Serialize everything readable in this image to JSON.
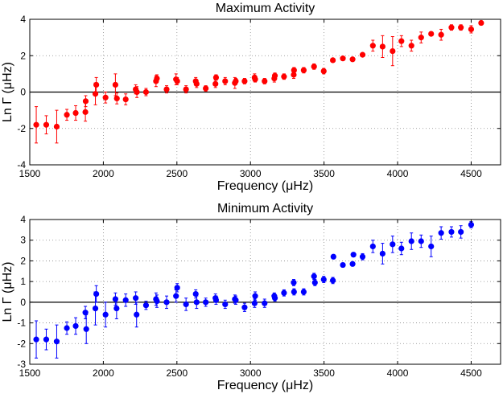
{
  "chart_data": [
    {
      "type": "scatter",
      "title": "Maximum Activity",
      "xlabel": "Frequency (μHz)",
      "ylabel": "Ln Γ (μHz)",
      "xlim": [
        1500,
        4700
      ],
      "ylim": [
        -4,
        4
      ],
      "xticks": [
        1500,
        2000,
        2500,
        3000,
        3500,
        4000,
        4500
      ],
      "yticks": [
        -4,
        -2,
        0,
        2,
        4
      ],
      "grid": true,
      "reference_line_y": 0,
      "color": "#ff0000",
      "points": [
        [
          1544,
          -1.8,
          1.0
        ],
        [
          1612,
          -1.8,
          0.5
        ],
        [
          1683,
          -1.9,
          0.9
        ],
        [
          1752,
          -1.25,
          0.3
        ],
        [
          1812,
          -1.15,
          0.4
        ],
        [
          1878,
          -1.1,
          0.5
        ],
        [
          1880,
          -0.5,
          0.3
        ],
        [
          1946,
          -0.1,
          0.6
        ],
        [
          1952,
          0.4,
          0.4
        ],
        [
          2015,
          -0.3,
          0.3
        ],
        [
          2082,
          0.4,
          0.6
        ],
        [
          2092,
          -0.35,
          0.3
        ],
        [
          2152,
          -0.4,
          0.3
        ],
        [
          2220,
          0.15,
          0.25
        ],
        [
          2228,
          0.0,
          0.3
        ],
        [
          2290,
          0.0,
          0.2
        ],
        [
          2358,
          0.6,
          0.3
        ],
        [
          2364,
          0.75,
          0.2
        ],
        [
          2430,
          0.15,
          0.2
        ],
        [
          2494,
          0.7,
          0.3
        ],
        [
          2502,
          0.6,
          0.2
        ],
        [
          2562,
          0.15,
          0.2
        ],
        [
          2628,
          0.6,
          0.2
        ],
        [
          2634,
          0.45,
          0.2
        ],
        [
          2696,
          0.2,
          0.15
        ],
        [
          2762,
          0.45,
          0.2
        ],
        [
          2766,
          0.8,
          0.15
        ],
        [
          2828,
          0.6,
          0.2
        ],
        [
          2894,
          0.5,
          0.3
        ],
        [
          2900,
          0.6,
          0.15
        ],
        [
          2960,
          0.6,
          0.15
        ],
        [
          3028,
          0.8,
          0.2
        ],
        [
          3032,
          0.7,
          0.15
        ],
        [
          3096,
          0.6,
          0.15
        ],
        [
          3162,
          0.75,
          0.2
        ],
        [
          3166,
          0.9,
          0.15
        ],
        [
          3228,
          0.85,
          0.15
        ],
        [
          3294,
          0.95,
          0.2
        ],
        [
          3296,
          1.2,
          0.15
        ],
        [
          3362,
          1.2,
          0.15
        ],
        [
          3432,
          1.4,
          0.15
        ],
        [
          3498,
          1.15,
          0.15
        ],
        [
          3560,
          1.75,
          0.1
        ],
        [
          3628,
          1.85,
          0.1
        ],
        [
          3694,
          1.8,
          0.1
        ],
        [
          3762,
          2.05,
          0.1
        ],
        [
          3832,
          2.55,
          0.3
        ],
        [
          3898,
          2.5,
          0.6
        ],
        [
          3966,
          2.25,
          0.8
        ],
        [
          4026,
          2.8,
          0.3
        ],
        [
          4094,
          2.55,
          0.3
        ],
        [
          4160,
          3.0,
          0.3
        ],
        [
          4228,
          3.2,
          0.1
        ],
        [
          4296,
          3.15,
          0.3
        ],
        [
          4366,
          3.55,
          0.15
        ],
        [
          4430,
          3.55,
          0.15
        ],
        [
          4500,
          3.45,
          0.2
        ],
        [
          4568,
          3.8,
          0.1
        ]
      ]
    },
    {
      "type": "scatter",
      "title": "Minimum Activity",
      "xlabel": "Frequency (μHz)",
      "ylabel": "Ln Γ (μHz)",
      "xlim": [
        1500,
        4700
      ],
      "ylim": [
        -3,
        4
      ],
      "xticks": [
        1500,
        2000,
        2500,
        3000,
        3500,
        4000,
        4500
      ],
      "yticks": [
        -3,
        -2,
        -1,
        0,
        1,
        2,
        3,
        4
      ],
      "grid": true,
      "reference_line_y": 0,
      "color": "#0000ff",
      "points": [
        [
          1544,
          -1.8,
          0.9
        ],
        [
          1612,
          -1.8,
          0.5
        ],
        [
          1683,
          -1.9,
          0.8
        ],
        [
          1752,
          -1.25,
          0.3
        ],
        [
          1812,
          -1.15,
          0.4
        ],
        [
          1878,
          -0.5,
          0.3
        ],
        [
          1884,
          -1.3,
          0.7
        ],
        [
          1946,
          -0.3,
          0.8
        ],
        [
          1952,
          0.4,
          0.4
        ],
        [
          2015,
          -0.6,
          0.6
        ],
        [
          2082,
          0.15,
          0.3
        ],
        [
          2090,
          -0.3,
          0.5
        ],
        [
          2152,
          0.1,
          0.3
        ],
        [
          2220,
          0.2,
          0.3
        ],
        [
          2226,
          -0.6,
          0.6
        ],
        [
          2290,
          -0.15,
          0.2
        ],
        [
          2358,
          0.15,
          0.3
        ],
        [
          2364,
          0.05,
          0.3
        ],
        [
          2430,
          0.0,
          0.3
        ],
        [
          2494,
          0.3,
          0.3
        ],
        [
          2502,
          0.7,
          0.2
        ],
        [
          2562,
          -0.1,
          0.3
        ],
        [
          2628,
          0.4,
          0.2
        ],
        [
          2634,
          0.0,
          0.3
        ],
        [
          2696,
          0.0,
          0.2
        ],
        [
          2762,
          0.2,
          0.2
        ],
        [
          2766,
          0.1,
          0.2
        ],
        [
          2828,
          -0.1,
          0.2
        ],
        [
          2894,
          0.15,
          0.2
        ],
        [
          2900,
          0.1,
          0.2
        ],
        [
          2960,
          -0.25,
          0.2
        ],
        [
          3028,
          -0.05,
          0.2
        ],
        [
          3032,
          0.3,
          0.2
        ],
        [
          3096,
          -0.05,
          0.2
        ],
        [
          3162,
          0.3,
          0.15
        ],
        [
          3166,
          0.2,
          0.15
        ],
        [
          3228,
          0.45,
          0.15
        ],
        [
          3294,
          0.95,
          0.15
        ],
        [
          3296,
          0.5,
          0.15
        ],
        [
          3362,
          0.5,
          0.15
        ],
        [
          3432,
          1.25,
          0.15
        ],
        [
          3438,
          0.95,
          0.15
        ],
        [
          3498,
          1.1,
          0.15
        ],
        [
          3560,
          1.05,
          0.15
        ],
        [
          3564,
          2.2,
          0.1
        ],
        [
          3628,
          1.8,
          0.1
        ],
        [
          3694,
          1.85,
          0.1
        ],
        [
          3700,
          2.3,
          0.1
        ],
        [
          3762,
          2.2,
          0.15
        ],
        [
          3832,
          2.7,
          0.3
        ],
        [
          3898,
          2.35,
          0.5
        ],
        [
          3966,
          2.8,
          0.4
        ],
        [
          4026,
          2.6,
          0.3
        ],
        [
          4094,
          2.95,
          0.4
        ],
        [
          4160,
          2.95,
          0.3
        ],
        [
          4228,
          2.7,
          0.5
        ],
        [
          4296,
          3.35,
          0.3
        ],
        [
          4366,
          3.4,
          0.25
        ],
        [
          4430,
          3.4,
          0.3
        ],
        [
          4500,
          3.75,
          0.15
        ]
      ]
    }
  ]
}
